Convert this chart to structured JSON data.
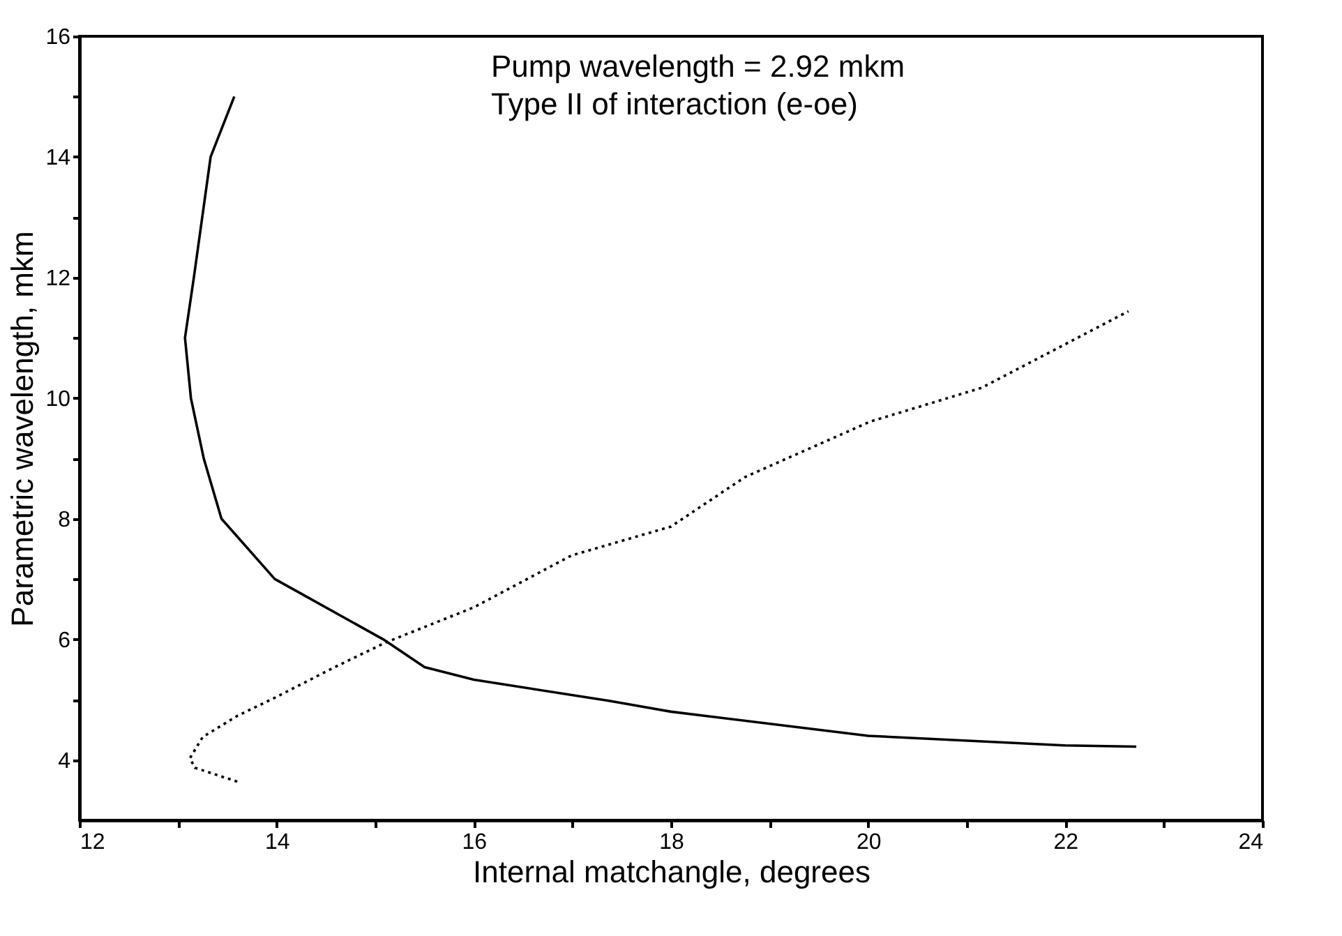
{
  "chart_data": {
    "type": "line",
    "xlabel": "Internal matchangle, degrees",
    "ylabel": "Parametric wavelength, mkm",
    "annotations": [
      "Pump wavelength = 2.92 mkm",
      "Type II of interaction (e-oe)"
    ],
    "series": [
      {
        "color": "#000000",
        "line_style": "solid",
        "x": [
          13.57,
          13.33,
          13.16,
          13.07,
          13.13,
          13.26,
          13.44,
          13.98,
          14.2,
          15.08,
          15.5,
          16.0,
          17.37,
          18.0,
          20.0,
          22.0,
          22.72
        ],
        "values": [
          15.0,
          14.0,
          12.0,
          11.0,
          10.0,
          9.0,
          8.0,
          7.0,
          6.8,
          6.0,
          5.54,
          5.33,
          4.98,
          4.8,
          4.4,
          4.24,
          4.22
        ]
      },
      {
        "color": "#000000",
        "line_style": "dotted",
        "x": [
          13.6,
          13.17,
          13.12,
          13.25,
          13.6,
          13.98,
          14.59,
          15.11,
          16.0,
          16.99,
          18.0,
          18.75,
          20.02,
          21.15,
          22.64
        ],
        "values": [
          3.64,
          3.87,
          4.03,
          4.38,
          4.73,
          5.03,
          5.54,
          5.95,
          6.53,
          7.39,
          7.87,
          8.69,
          9.61,
          10.17,
          11.44
        ]
      }
    ],
    "marker": "none",
    "xlim": [
      12,
      24
    ],
    "ylim": [
      3,
      16
    ],
    "xticks": [
      12,
      {
        "value": 13,
        "label": null
      },
      14,
      {
        "value": 15,
        "label": null
      },
      16,
      {
        "value": 17,
        "label": null
      },
      18,
      {
        "value": 19,
        "label": null
      },
      20,
      {
        "value": 21,
        "label": null
      },
      22,
      {
        "value": 23,
        "label": null
      },
      24
    ],
    "yticks": [
      4,
      {
        "value": 5,
        "label": null
      },
      6,
      {
        "value": 7,
        "label": null
      },
      8,
      {
        "value": 9,
        "label": null
      },
      10,
      {
        "value": 11,
        "label": null
      },
      12,
      {
        "value": 13,
        "label": null
      },
      14,
      {
        "value": 15,
        "label": null
      },
      16
    ],
    "grid": false
  }
}
